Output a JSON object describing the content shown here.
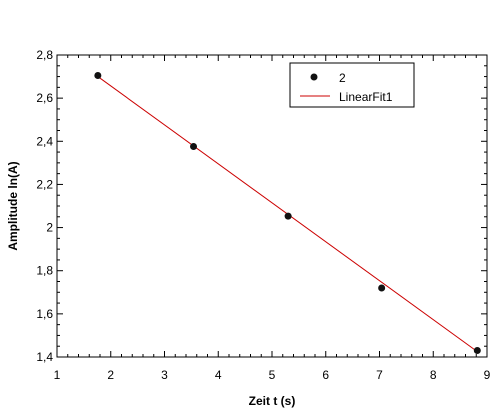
{
  "chart_data": {
    "type": "scatter",
    "xlabel": "Zeit t (s)",
    "ylabel": "Amplitude ln(A)",
    "xlim": [
      1,
      9
    ],
    "ylim": [
      1.4,
      2.8
    ],
    "xticks": [
      "1",
      "2",
      "3",
      "4",
      "5",
      "6",
      "7",
      "8",
      "9"
    ],
    "yticks": [
      "1,4",
      "1,6",
      "1,8",
      "2",
      "2,2",
      "2,4",
      "2,6",
      "2,8"
    ],
    "series": [
      {
        "name": "2",
        "kind": "scatter",
        "color": "#111111",
        "x": [
          1.76,
          3.54,
          5.3,
          7.04,
          8.82
        ],
        "y": [
          2.705,
          2.376,
          2.053,
          1.72,
          1.43
        ]
      },
      {
        "name": "LinearFit1",
        "kind": "line",
        "color": "#cc0000",
        "x": [
          1.76,
          8.82
        ],
        "y": [
          2.7,
          1.425
        ]
      }
    ],
    "legend": "top-right",
    "grid": false
  }
}
